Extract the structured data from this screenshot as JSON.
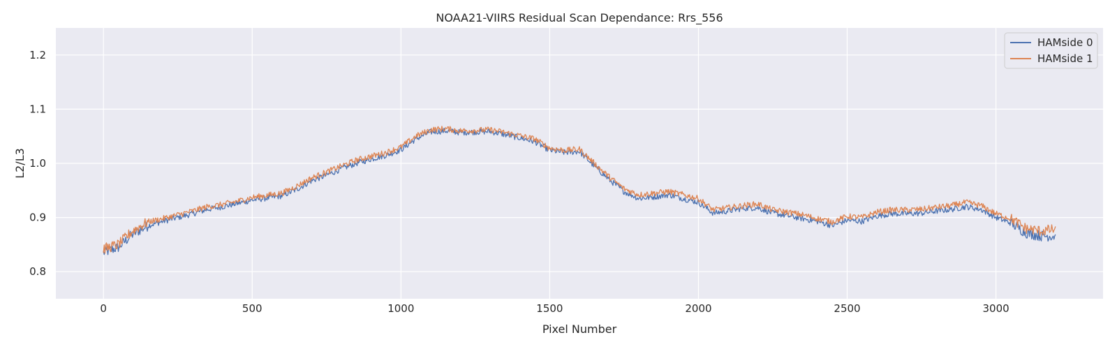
{
  "chart_data": {
    "type": "line",
    "title": "NOAA21-VIIRS Residual Scan Dependance: Rrs_556",
    "xlabel": "Pixel Number",
    "ylabel": "L2/L3",
    "xlim": [
      -160,
      3360
    ],
    "ylim": [
      0.75,
      1.25
    ],
    "xticks": [
      0,
      500,
      1000,
      1500,
      2000,
      2500,
      3000
    ],
    "xtick_labels": [
      "0",
      "500",
      "1000",
      "1500",
      "2000",
      "2500",
      "3000"
    ],
    "yticks": [
      0.8,
      0.9,
      1.0,
      1.1,
      1.2
    ],
    "ytick_labels": [
      "0.8",
      "0.9",
      "1.0",
      "1.1",
      "1.2"
    ],
    "grid": true,
    "legend_position": "upper right",
    "x": [
      0,
      50,
      100,
      150,
      200,
      250,
      300,
      350,
      400,
      450,
      500,
      550,
      600,
      650,
      700,
      750,
      800,
      850,
      900,
      950,
      1000,
      1050,
      1100,
      1150,
      1200,
      1250,
      1300,
      1350,
      1400,
      1450,
      1500,
      1550,
      1600,
      1650,
      1700,
      1750,
      1800,
      1850,
      1900,
      1950,
      2000,
      2050,
      2100,
      2150,
      2200,
      2250,
      2300,
      2350,
      2400,
      2450,
      2500,
      2550,
      2600,
      2650,
      2700,
      2750,
      2800,
      2850,
      2900,
      2950,
      3000,
      3050,
      3100,
      3150,
      3200
    ],
    "series": [
      {
        "name": "HAMside 0",
        "color": "#4c72b0",
        "values": [
          0.835,
          0.845,
          0.87,
          0.885,
          0.893,
          0.9,
          0.907,
          0.915,
          0.92,
          0.926,
          0.932,
          0.936,
          0.94,
          0.952,
          0.968,
          0.978,
          0.99,
          1.0,
          1.008,
          1.015,
          1.025,
          1.045,
          1.058,
          1.06,
          1.057,
          1.058,
          1.059,
          1.053,
          1.047,
          1.04,
          1.024,
          1.02,
          1.022,
          0.995,
          0.97,
          0.948,
          0.935,
          0.938,
          0.942,
          0.935,
          0.928,
          0.908,
          0.912,
          0.917,
          0.918,
          0.908,
          0.903,
          0.898,
          0.893,
          0.885,
          0.895,
          0.893,
          0.903,
          0.907,
          0.907,
          0.908,
          0.912,
          0.915,
          0.92,
          0.915,
          0.9,
          0.89,
          0.872,
          0.866,
          0.866
        ]
      },
      {
        "name": "HAMside 1",
        "color": "#dd8452",
        "values": [
          0.842,
          0.85,
          0.876,
          0.892,
          0.898,
          0.905,
          0.912,
          0.92,
          0.924,
          0.93,
          0.937,
          0.941,
          0.945,
          0.958,
          0.973,
          0.984,
          0.995,
          1.006,
          1.013,
          1.02,
          1.03,
          1.05,
          1.062,
          1.064,
          1.06,
          1.061,
          1.062,
          1.057,
          1.051,
          1.045,
          1.028,
          1.024,
          1.026,
          1.0,
          0.975,
          0.953,
          0.942,
          0.945,
          0.948,
          0.942,
          0.935,
          0.914,
          0.918,
          0.922,
          0.925,
          0.914,
          0.91,
          0.905,
          0.898,
          0.892,
          0.902,
          0.9,
          0.91,
          0.914,
          0.914,
          0.915,
          0.919,
          0.922,
          0.928,
          0.922,
          0.907,
          0.898,
          0.88,
          0.875,
          0.878
        ]
      }
    ]
  }
}
